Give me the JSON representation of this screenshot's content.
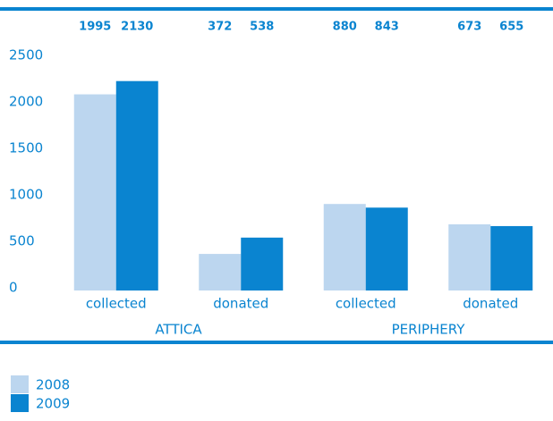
{
  "chart_data": {
    "type": "bar",
    "categories": [
      "collected",
      "donated",
      "collected",
      "donated"
    ],
    "groups": [
      "ATTICA",
      "PERIPHERY"
    ],
    "series": [
      {
        "name": "2008",
        "color": "#bcd6ef",
        "values": [
          1995,
          372,
          880,
          673
        ]
      },
      {
        "name": "2009",
        "color": "#0a84d0",
        "values": [
          2130,
          538,
          843,
          655
        ]
      }
    ],
    "ylim": [
      0,
      2500
    ],
    "yticks": [
      0,
      500,
      1000,
      1500,
      2000,
      2500
    ]
  }
}
